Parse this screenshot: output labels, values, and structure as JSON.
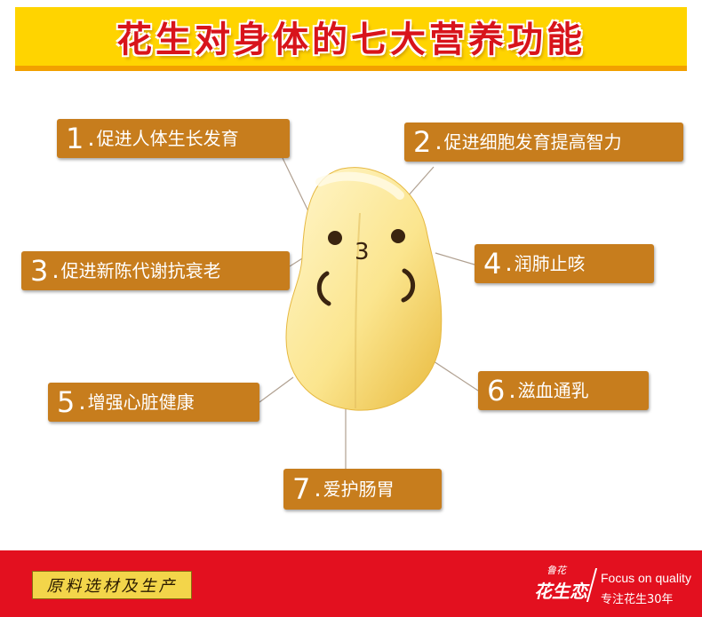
{
  "title": "花生对身体的七大营养功能",
  "items": [
    {
      "num": "1",
      "dot": ".",
      "label": "促进人体生长发育"
    },
    {
      "num": "2",
      "dot": ".",
      "label": "促进细胞发育提高智力"
    },
    {
      "num": "3",
      "dot": ".",
      "label": "促进新陈代谢抗衰老"
    },
    {
      "num": "4",
      "dot": ".",
      "label": "润肺止咳"
    },
    {
      "num": "5",
      "dot": ".",
      "label": "增强心脏健康"
    },
    {
      "num": "6",
      "dot": ".",
      "label": "滋血通乳"
    },
    {
      "num": "7",
      "dot": ".",
      "label": "爱护肠胃"
    }
  ],
  "peanut_face": {
    "mouth_char": "3"
  },
  "footer": {
    "tag": "原料选材及生产",
    "logo_small": "鲁花",
    "logo_main": "花生恋",
    "slogan_en": "Focus on quality",
    "slogan_cn": "专注花生30年"
  },
  "colors": {
    "title_bg": "#ffd400",
    "title_text": "#d8141b",
    "box_bg": "#c77d1d",
    "footer_bg": "#e3101f"
  }
}
